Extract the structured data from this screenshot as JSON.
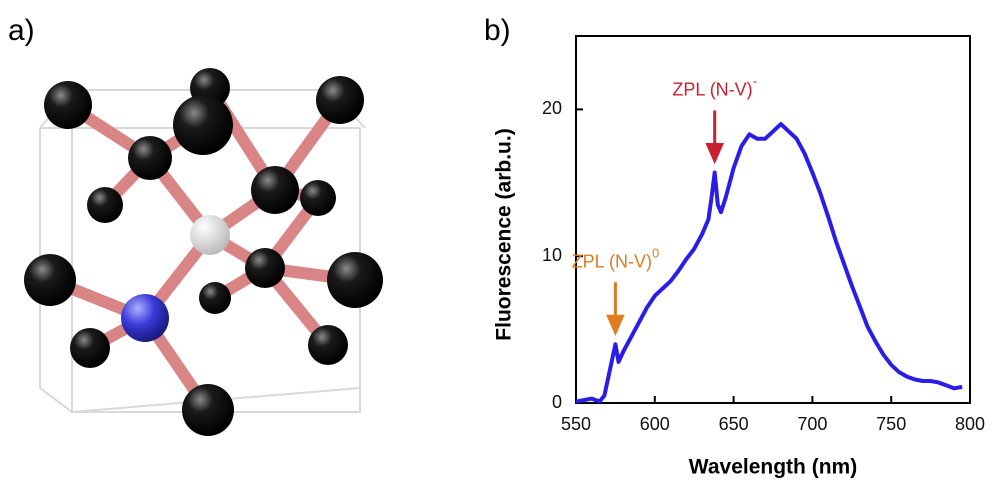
{
  "panel_labels": [
    "a)",
    "b)"
  ],
  "chart_data": {
    "type": "line",
    "x_label": "Wavelength (nm)",
    "y_label": "Fluorescence (arb.u.)",
    "xlim": [
      550,
      800
    ],
    "ylim": [
      0,
      25
    ],
    "xticks": [
      550,
      600,
      650,
      700,
      750,
      800
    ],
    "yticks": [
      0,
      10,
      20
    ],
    "series": [
      {
        "color": "#2b1de8",
        "x": [
          550,
          555,
          560,
          565,
          568,
          570,
          572,
          575,
          577,
          580,
          585,
          590,
          595,
          600,
          605,
          610,
          615,
          620,
          625,
          630,
          634,
          636,
          638,
          640,
          642,
          645,
          650,
          655,
          660,
          665,
          670,
          675,
          680,
          685,
          690,
          695,
          700,
          705,
          710,
          715,
          720,
          725,
          730,
          735,
          740,
          745,
          750,
          755,
          760,
          765,
          770,
          775,
          780,
          785,
          790,
          795
        ],
        "values": [
          0.1,
          0.2,
          0.3,
          0.1,
          0.5,
          1.5,
          2.5,
          4,
          2.8,
          3.5,
          4.5,
          5.5,
          6.5,
          7.3,
          7.8,
          8.3,
          9,
          9.8,
          10.5,
          11.5,
          12.5,
          14,
          15.7,
          13.5,
          13,
          14,
          16,
          17.5,
          18.3,
          18,
          18,
          18.5,
          19,
          18.5,
          18,
          17,
          15.7,
          14.3,
          12.7,
          11,
          9.5,
          8,
          6.6,
          5.2,
          4.2,
          3.3,
          2.6,
          2.1,
          1.8,
          1.6,
          1.5,
          1.5,
          1.4,
          1.2,
          1,
          1.1
        ]
      }
    ],
    "annotations": [
      {
        "text": "ZPL (N-V)",
        "sup": "0",
        "x": 575,
        "y": 4,
        "color": "#e07b22"
      },
      {
        "text": "ZPL (N-V)",
        "sup": "-",
        "x": 638,
        "y": 15.7,
        "color": "#c8202c"
      }
    ]
  }
}
